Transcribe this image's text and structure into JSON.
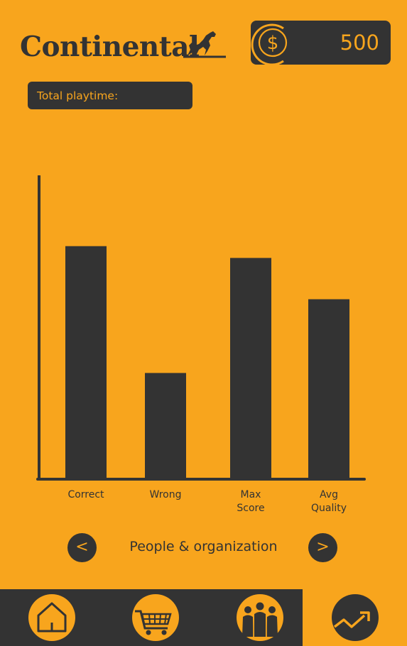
{
  "brand": {
    "logo_text": "Continental"
  },
  "header": {
    "coins": "500",
    "coin_icon": "dollar-coin-icon"
  },
  "stats": {
    "playtime_label": "Total playtime:",
    "playtime_value": ""
  },
  "chart_data": {
    "type": "bar",
    "categories": [
      "Correct",
      "Wrong",
      "Max\nScore",
      "Avg\nQuality"
    ],
    "values": [
      79,
      36,
      75,
      61
    ],
    "ylim": [
      0,
      103
    ],
    "xlabel": "",
    "ylabel": "",
    "title": "",
    "grid": false,
    "colors": {
      "bar": "#333333",
      "axis": "#333333"
    }
  },
  "pager": {
    "prev_label": "<",
    "next_label": ">",
    "category": "People & organization"
  },
  "nav": {
    "items": [
      {
        "icon": "home-icon",
        "active": false
      },
      {
        "icon": "shopping-cart-icon",
        "active": false
      },
      {
        "icon": "people-team-icon",
        "active": false
      },
      {
        "icon": "trending-chart-icon",
        "active": true
      }
    ]
  },
  "colors": {
    "background": "#F8A51D",
    "dark": "#333333"
  }
}
